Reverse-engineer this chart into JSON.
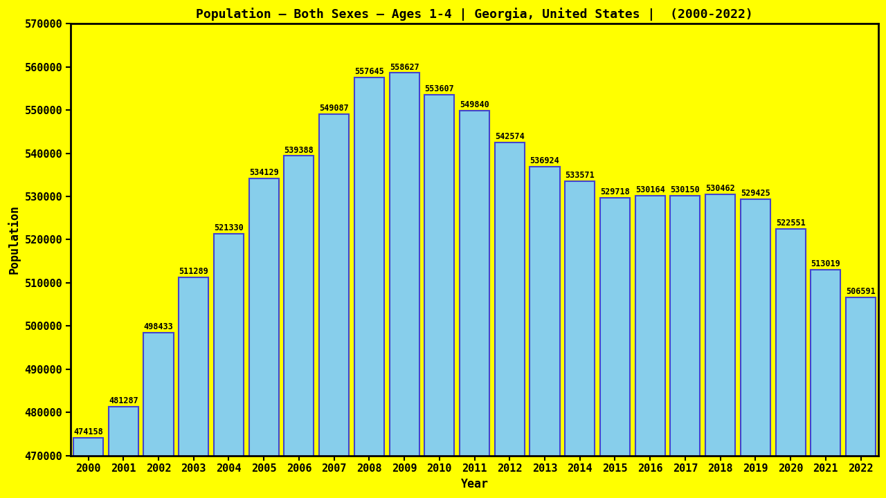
{
  "title": "Population – Both Sexes – Ages 1-4 | Georgia, United States |  (2000-2022)",
  "xlabel": "Year",
  "ylabel": "Population",
  "background_color": "#ffff00",
  "bar_color": "#87ceeb",
  "bar_edge_color": "#4444cc",
  "years": [
    2000,
    2001,
    2002,
    2003,
    2004,
    2005,
    2006,
    2007,
    2008,
    2009,
    2010,
    2011,
    2012,
    2013,
    2014,
    2015,
    2016,
    2017,
    2018,
    2019,
    2020,
    2021,
    2022
  ],
  "values": [
    474158,
    481287,
    498433,
    511289,
    521330,
    534129,
    539388,
    549087,
    557645,
    558627,
    553607,
    549840,
    542574,
    536924,
    533571,
    529718,
    530164,
    530150,
    530462,
    529425,
    522551,
    513019,
    506591
  ],
  "ylim": [
    470000,
    570000
  ],
  "yticks": [
    470000,
    480000,
    490000,
    500000,
    510000,
    520000,
    530000,
    540000,
    550000,
    560000,
    570000
  ],
  "title_fontsize": 13,
  "axis_label_fontsize": 12,
  "tick_fontsize": 11,
  "annotation_fontsize": 8.5,
  "bar_width": 0.85
}
